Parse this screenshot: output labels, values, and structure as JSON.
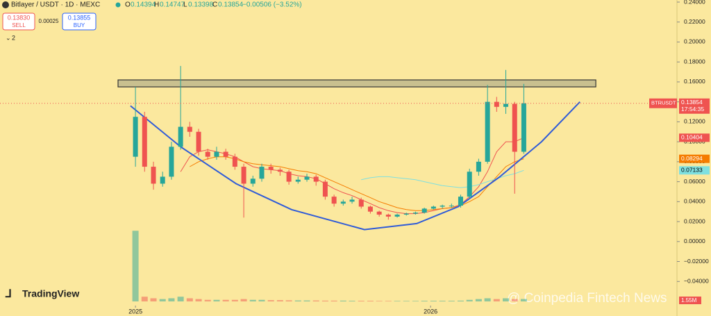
{
  "header": {
    "symbol": "Bitlayer / USDT · 1D · MEXC",
    "o_label": "O",
    "o": "0.14394",
    "h_label": "H",
    "h": "0.14747",
    "l_label": "L",
    "l": "0.13398",
    "c_label": "C",
    "c": "0.13854",
    "change": "−0.00506 (−3.52%)",
    "sell_price": "0.13830",
    "sell": "SELL",
    "spread": "0.00025",
    "buy_price": "0.13855",
    "buy": "BUY",
    "indicators": "2"
  },
  "watermarks": {
    "logo": "TradingView",
    "source": "@ Coinpedia Fintech News"
  },
  "chart_data": {
    "type": "candlestick",
    "x": [
      2025.0,
      2025.031,
      2025.061,
      2025.092,
      2025.122,
      2025.153,
      2025.184,
      2025.214,
      2025.245,
      2025.275,
      2025.306,
      2025.337,
      2025.367,
      2025.398,
      2025.428,
      2025.459,
      2025.49,
      2025.52,
      2025.551,
      2025.581,
      2025.612,
      2025.643,
      2025.673,
      2025.704,
      2025.734,
      2025.765,
      2025.796,
      2025.826,
      2025.857,
      2025.887,
      2025.918,
      2025.949,
      2025.979,
      2026.01,
      2026.04,
      2026.071,
      2026.102,
      2026.132,
      2026.163,
      2026.193,
      2026.224,
      2026.255,
      2026.285,
      2026.316
    ],
    "open": [
      0.085,
      0.125,
      0.075,
      0.058,
      0.065,
      0.095,
      0.115,
      0.11,
      0.09,
      0.085,
      0.09,
      0.085,
      0.075,
      0.058,
      0.063,
      0.075,
      0.072,
      0.07,
      0.06,
      0.062,
      0.065,
      0.06,
      0.045,
      0.038,
      0.04,
      0.042,
      0.035,
      0.03,
      0.027,
      0.025,
      0.027,
      0.028,
      0.029,
      0.033,
      0.035,
      0.036,
      0.036,
      0.045,
      0.07,
      0.08,
      0.14,
      0.135,
      0.138,
      0.09
    ],
    "high": [
      0.155,
      0.13,
      0.08,
      0.07,
      0.1,
      0.176,
      0.12,
      0.113,
      0.093,
      0.095,
      0.093,
      0.088,
      0.078,
      0.066,
      0.078,
      0.078,
      0.074,
      0.072,
      0.065,
      0.068,
      0.067,
      0.062,
      0.047,
      0.042,
      0.045,
      0.044,
      0.036,
      0.031,
      0.028,
      0.028,
      0.029,
      0.03,
      0.034,
      0.036,
      0.037,
      0.038,
      0.047,
      0.073,
      0.083,
      0.157,
      0.145,
      0.172,
      0.14,
      0.158
    ],
    "low": [
      0.075,
      0.07,
      0.052,
      0.055,
      0.062,
      0.092,
      0.105,
      0.086,
      0.082,
      0.082,
      0.082,
      0.072,
      0.024,
      0.055,
      0.06,
      0.068,
      0.066,
      0.057,
      0.058,
      0.06,
      0.056,
      0.042,
      0.035,
      0.036,
      0.038,
      0.033,
      0.028,
      0.025,
      0.022,
      0.024,
      0.026,
      0.027,
      0.028,
      0.032,
      0.033,
      0.034,
      0.034,
      0.043,
      0.066,
      0.078,
      0.13,
      0.128,
      0.048,
      0.088
    ],
    "close": [
      0.125,
      0.075,
      0.058,
      0.065,
      0.095,
      0.115,
      0.11,
      0.09,
      0.085,
      0.09,
      0.085,
      0.075,
      0.058,
      0.063,
      0.075,
      0.072,
      0.07,
      0.06,
      0.062,
      0.065,
      0.06,
      0.045,
      0.038,
      0.04,
      0.042,
      0.035,
      0.03,
      0.027,
      0.025,
      0.027,
      0.028,
      0.029,
      0.033,
      0.035,
      0.036,
      0.036,
      0.045,
      0.07,
      0.08,
      0.14,
      0.135,
      0.138,
      0.09,
      0.13854
    ],
    "up_color": "#26a69a",
    "down_color": "#ef5350",
    "lines": [
      {
        "color": "#ef5350",
        "values": [
          null,
          null,
          null,
          null,
          null,
          0.07,
          0.085,
          0.09,
          0.092,
          0.09,
          0.088,
          0.085,
          0.08,
          0.075,
          0.073,
          0.072,
          0.071,
          0.068,
          0.066,
          0.065,
          0.063,
          0.058,
          0.053,
          0.049,
          0.046,
          0.042,
          0.038,
          0.034,
          0.031,
          0.029,
          0.028,
          0.028,
          0.029,
          0.031,
          0.033,
          0.034,
          0.037,
          0.045,
          0.055,
          0.07,
          0.09,
          0.1,
          0.1,
          0.10404
        ],
        "last_label": "0.10404"
      },
      {
        "color": "#f57c00",
        "values": [
          null,
          null,
          null,
          null,
          null,
          null,
          0.075,
          0.08,
          0.083,
          0.085,
          0.085,
          0.083,
          0.08,
          0.078,
          0.077,
          0.076,
          0.075,
          0.073,
          0.071,
          0.07,
          0.068,
          0.064,
          0.06,
          0.056,
          0.052,
          0.048,
          0.044,
          0.04,
          0.037,
          0.034,
          0.032,
          0.031,
          0.031,
          0.032,
          0.033,
          0.034,
          0.036,
          0.04,
          0.045,
          0.055,
          0.065,
          0.075,
          0.08,
          0.08294
        ],
        "last_label": "0.08294"
      },
      {
        "color": "#7fe0e0",
        "values": [
          null,
          null,
          null,
          null,
          null,
          null,
          null,
          null,
          null,
          null,
          null,
          null,
          null,
          null,
          null,
          null,
          null,
          null,
          null,
          null,
          null,
          null,
          null,
          null,
          null,
          0.062,
          0.064,
          0.065,
          0.065,
          0.064,
          0.063,
          0.062,
          0.06,
          0.058,
          0.056,
          0.055,
          0.054,
          0.055,
          0.057,
          0.06,
          0.063,
          0.066,
          0.068,
          0.07133
        ],
        "last_label": "0.07133"
      }
    ],
    "curve": {
      "color": "#2f5bd8",
      "x": [
        2024.983,
        2025.153,
        2025.341,
        2025.529,
        2025.776,
        2025.953,
        2026.094,
        2026.235,
        2026.376,
        2026.506
      ],
      "values": [
        0.136,
        0.095,
        0.058,
        0.032,
        0.012,
        0.018,
        0.035,
        0.065,
        0.1,
        0.14
      ]
    },
    "zone": {
      "x": [
        2024.941,
        2026.56
      ],
      "values": [
        0.155,
        0.162
      ]
    },
    "volume": {
      "values": [
        45,
        3,
        2,
        1.5,
        2,
        3,
        2,
        1.5,
        1,
        1,
        1,
        1,
        1.5,
        1,
        1,
        0.8,
        0.8,
        0.7,
        0.6,
        0.6,
        0.6,
        0.5,
        0.5,
        0.5,
        0.4,
        0.4,
        0.4,
        0.3,
        0.3,
        0.3,
        0.3,
        0.3,
        0.4,
        0.4,
        0.4,
        0.4,
        0.5,
        1,
        1.5,
        2,
        1.5,
        2,
        1.5,
        1.55
      ],
      "lim": [
        0,
        46
      ],
      "last_label": "1.55M"
    },
    "last_symbol": "BTRUSDT",
    "last_price": 0.13854,
    "last_price_label": "0.13854",
    "countdown": "17:54:35",
    "xlim": [
      2024.541,
      2026.835
    ],
    "xticks": [
      2025,
      2026
    ],
    "ylim": [
      -0.06,
      0.24
    ],
    "yticks": [
      {
        "value": 0.24,
        "label": "0.24000"
      },
      {
        "value": 0.22,
        "label": "0.22000"
      },
      {
        "value": 0.2,
        "label": "0.20000"
      },
      {
        "value": 0.18,
        "label": "0.18000"
      },
      {
        "value": 0.16,
        "label": "0.16000"
      },
      {
        "value": 0.14,
        "label": "0.14000"
      },
      {
        "value": 0.12,
        "label": "0.12000"
      },
      {
        "value": 0.1,
        "label": "0.10000"
      },
      {
        "value": 0.08,
        "label": "0.08000"
      },
      {
        "value": 0.06,
        "label": "0.06000"
      },
      {
        "value": 0.04,
        "label": "0.04000"
      },
      {
        "value": 0.02,
        "label": "0.02000"
      },
      {
        "value": 0,
        "label": "0.00000"
      },
      {
        "value": -0.02,
        "label": "−0.02000"
      },
      {
        "value": -0.04,
        "label": "−0.04000"
      }
    ]
  }
}
